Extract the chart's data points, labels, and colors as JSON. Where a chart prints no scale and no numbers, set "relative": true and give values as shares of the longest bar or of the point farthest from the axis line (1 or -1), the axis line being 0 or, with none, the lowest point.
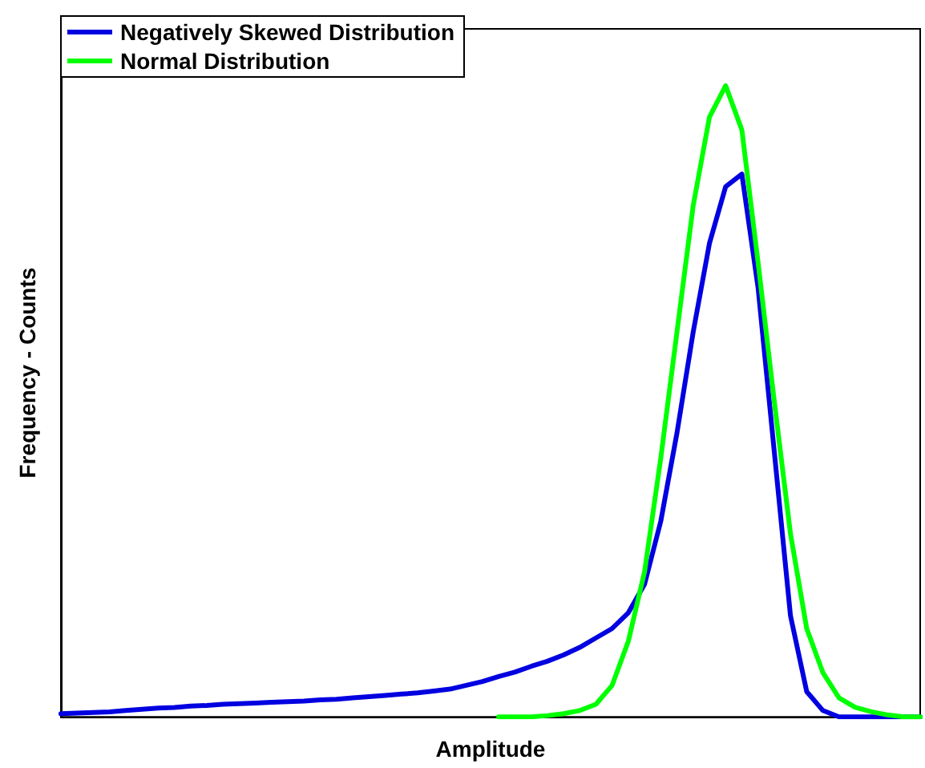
{
  "chart_data": {
    "type": "line",
    "relative": true,
    "xlabel": "Amplitude",
    "ylabel": "Frequency - Counts",
    "legend": "top left",
    "grid": false,
    "marker": "none",
    "line_style": "solid",
    "categories": [
      null,
      null,
      null,
      null,
      null,
      null,
      null,
      null,
      null,
      null,
      null,
      null,
      null,
      null,
      null,
      null,
      null,
      null,
      null,
      null,
      null,
      null,
      null,
      null,
      null,
      null,
      null,
      null,
      null,
      null,
      null,
      null,
      null,
      null,
      null,
      null,
      null,
      null,
      null,
      null,
      null,
      null,
      null,
      null,
      null,
      null,
      null,
      null,
      null,
      null,
      null,
      null,
      null,
      null
    ],
    "series": [
      {
        "name": "Negatively Skewed Distribution",
        "color": "#0000e0",
        "values": [
          0.005,
          0.006,
          0.007,
          0.008,
          0.01,
          0.012,
          0.014,
          0.015,
          0.017,
          0.018,
          0.02,
          0.021,
          0.022,
          0.023,
          0.024,
          0.025,
          0.027,
          0.028,
          0.03,
          0.032,
          0.034,
          0.036,
          0.038,
          0.041,
          0.044,
          0.05,
          0.056,
          0.064,
          0.071,
          0.08,
          0.088,
          0.098,
          0.11,
          0.125,
          0.14,
          0.165,
          0.21,
          0.31,
          0.45,
          0.61,
          0.75,
          0.84,
          0.86,
          0.68,
          0.42,
          0.16,
          0.04,
          0.01,
          0,
          0,
          0,
          0,
          0,
          0
        ]
      },
      {
        "name": "Normal Distribution",
        "color": "#00ff00",
        "values": [
          null,
          null,
          null,
          null,
          null,
          null,
          null,
          null,
          null,
          null,
          null,
          null,
          null,
          null,
          null,
          null,
          null,
          null,
          null,
          null,
          null,
          null,
          null,
          null,
          null,
          null,
          null,
          0,
          0,
          0,
          0.002,
          0.005,
          0.01,
          0.02,
          0.05,
          0.12,
          0.23,
          0.41,
          0.61,
          0.81,
          0.95,
          1,
          0.93,
          0.72,
          0.5,
          0.29,
          0.14,
          0.07,
          0.03,
          0.015,
          0.008,
          0.003,
          0,
          0
        ]
      }
    ]
  }
}
